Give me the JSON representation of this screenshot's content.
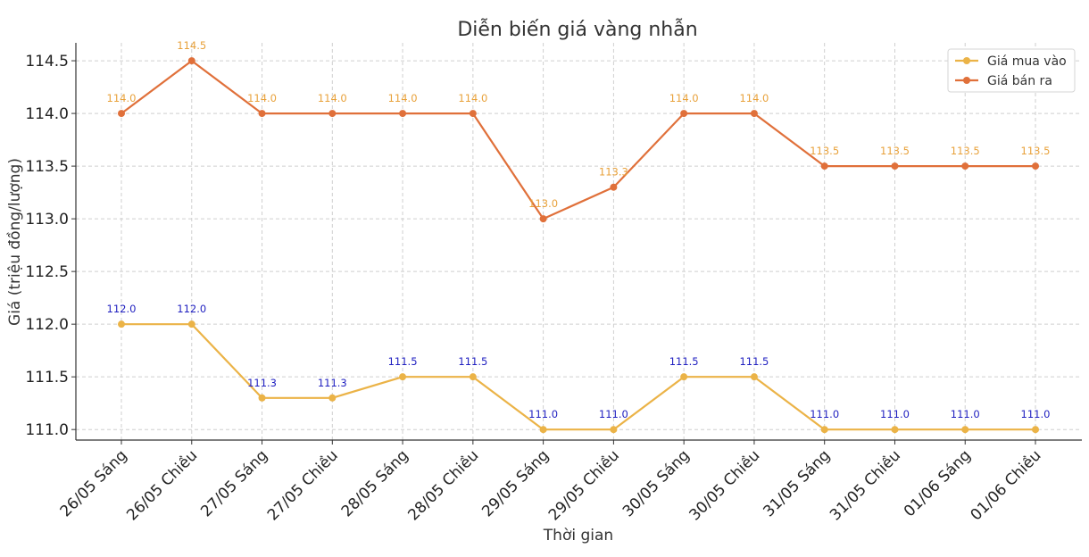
{
  "chart_data": {
    "type": "line",
    "title": "Diễn biến giá vàng nhẫn",
    "xlabel": "Thời gian",
    "ylabel": "Giá (triệu đồng/lượng)",
    "categories": [
      "26/05 Sáng",
      "26/05 Chiều",
      "27/05 Sáng",
      "27/05 Chiều",
      "28/05 Sáng",
      "28/05 Chiều",
      "29/05 Sáng",
      "29/05 Chiều",
      "30/05 Sáng",
      "30/05 Chiều",
      "31/05 Sáng",
      "31/05 Chiều",
      "01/06 Sáng",
      "01/06 Chiều"
    ],
    "ylim": [
      110.9,
      114.67
    ],
    "yticks": [
      111.0,
      111.5,
      112.0,
      112.5,
      113.0,
      113.5,
      114.0,
      114.5
    ],
    "ytick_labels": [
      "111.0",
      "111.5",
      "112.0",
      "112.5",
      "113.0",
      "113.5",
      "114.0",
      "114.5"
    ],
    "grid": true,
    "legend_position": "top-right",
    "series": [
      {
        "name": "Giá mua vào",
        "color": "#EBB347",
        "label_color": "#1F1FC0",
        "values": [
          112.0,
          112.0,
          111.3,
          111.3,
          111.5,
          111.5,
          111.0,
          111.0,
          111.5,
          111.5,
          111.0,
          111.0,
          111.0,
          111.0
        ],
        "labels": [
          "112.0",
          "112.0",
          "111.3",
          "111.3",
          "111.5",
          "111.5",
          "111.0",
          "111.0",
          "111.5",
          "111.5",
          "111.0",
          "111.0",
          "111.0",
          "111.0"
        ]
      },
      {
        "name": "Giá bán ra",
        "color": "#E0703A",
        "label_color": "#E8A13A",
        "values": [
          114.0,
          114.5,
          114.0,
          114.0,
          114.0,
          114.0,
          113.0,
          113.3,
          114.0,
          114.0,
          113.5,
          113.5,
          113.5,
          113.5
        ],
        "labels": [
          "114.0",
          "114.5",
          "114.0",
          "114.0",
          "114.0",
          "114.0",
          "113.0",
          "113.3",
          "114.0",
          "114.0",
          "113.5",
          "113.5",
          "113.5",
          "113.5"
        ]
      }
    ]
  }
}
